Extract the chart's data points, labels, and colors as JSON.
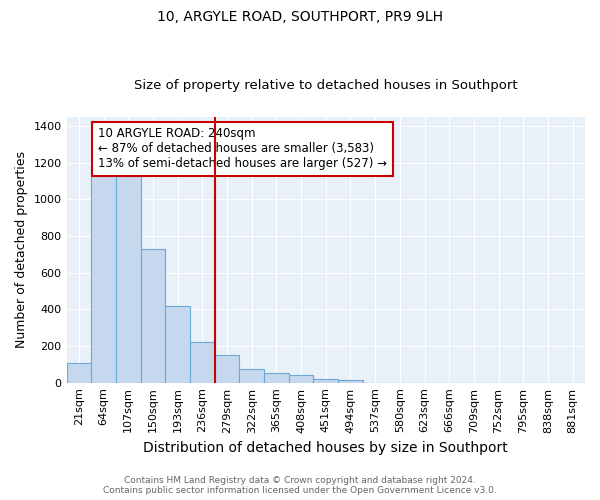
{
  "title": "10, ARGYLE ROAD, SOUTHPORT, PR9 9LH",
  "subtitle": "Size of property relative to detached houses in Southport",
  "xlabel": "Distribution of detached houses by size in Southport",
  "ylabel": "Number of detached properties",
  "categories": [
    "21sqm",
    "64sqm",
    "107sqm",
    "150sqm",
    "193sqm",
    "236sqm",
    "279sqm",
    "322sqm",
    "365sqm",
    "408sqm",
    "451sqm",
    "494sqm",
    "537sqm",
    "580sqm",
    "623sqm",
    "666sqm",
    "709sqm",
    "752sqm",
    "795sqm",
    "838sqm",
    "881sqm"
  ],
  "values": [
    108,
    1160,
    1160,
    730,
    420,
    220,
    150,
    75,
    55,
    40,
    20,
    15,
    0,
    0,
    0,
    0,
    0,
    0,
    0,
    0,
    0
  ],
  "bar_color": "#c5d8ee",
  "bar_edge_color": "#6aaad4",
  "vline_x": 5.5,
  "vline_color": "#cc0000",
  "annotation_text": "10 ARGYLE ROAD: 240sqm\n← 87% of detached houses are smaller (3,583)\n13% of semi-detached houses are larger (527) →",
  "annotation_box_color": "#ffffff",
  "annotation_box_edge": "#cc0000",
  "ylim": [
    0,
    1450
  ],
  "yticks": [
    0,
    200,
    400,
    600,
    800,
    1000,
    1200,
    1400
  ],
  "footer_line1": "Contains HM Land Registry data © Crown copyright and database right 2024.",
  "footer_line2": "Contains public sector information licensed under the Open Government Licence v3.0.",
  "background_color": "#ffffff",
  "plot_background": "#e8f0f8",
  "title_fontsize": 10,
  "subtitle_fontsize": 9.5,
  "xlabel_fontsize": 10,
  "ylabel_fontsize": 9,
  "tick_fontsize": 8,
  "footer_fontsize": 6.5,
  "annotation_fontsize": 8.5
}
